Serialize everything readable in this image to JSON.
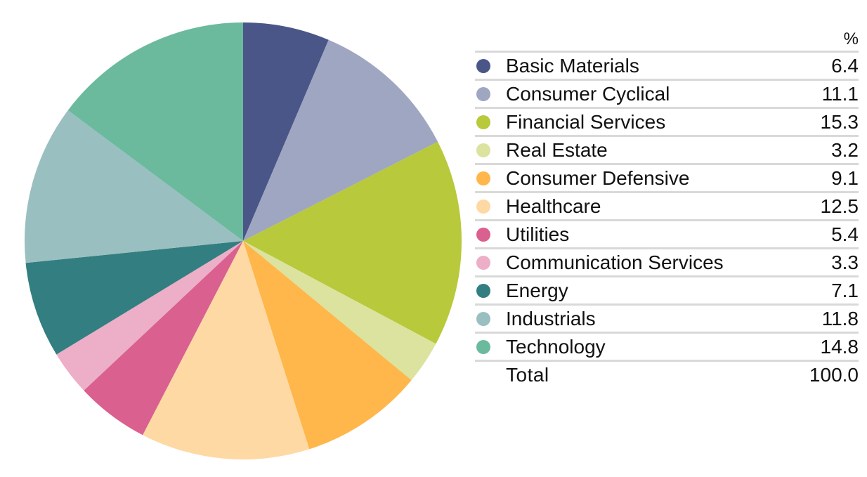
{
  "chart_data": {
    "type": "pie",
    "unit_header": "%",
    "start_angle_deg": 0,
    "direction": "clockwise",
    "slices": [
      {
        "label": "Basic Materials",
        "value": 6.4,
        "value_text": "6.4",
        "color": "#4a5687"
      },
      {
        "label": "Consumer Cyclical",
        "value": 11.1,
        "value_text": "11.1",
        "color": "#9ea6c1"
      },
      {
        "label": "Financial Services",
        "value": 15.3,
        "value_text": "15.3",
        "color": "#b8c93b"
      },
      {
        "label": "Real Estate",
        "value": 3.2,
        "value_text": "3.2",
        "color": "#dbe39e"
      },
      {
        "label": "Consumer Defensive",
        "value": 9.1,
        "value_text": "9.1",
        "color": "#ffb64b"
      },
      {
        "label": "Healthcare",
        "value": 12.5,
        "value_text": "12.5",
        "color": "#fed9a4"
      },
      {
        "label": "Utilities",
        "value": 5.4,
        "value_text": "5.4",
        "color": "#d9608f"
      },
      {
        "label": "Communication Services",
        "value": 3.3,
        "value_text": "3.3",
        "color": "#edaec7"
      },
      {
        "label": "Energy",
        "value": 7.1,
        "value_text": "7.1",
        "color": "#337e80"
      },
      {
        "label": "Industrials",
        "value": 11.8,
        "value_text": "11.8",
        "color": "#9abfc0"
      },
      {
        "label": "Technology",
        "value": 14.8,
        "value_text": "14.8",
        "color": "#6bba9d"
      }
    ],
    "total_label": "Total",
    "total_value": "100.0"
  }
}
